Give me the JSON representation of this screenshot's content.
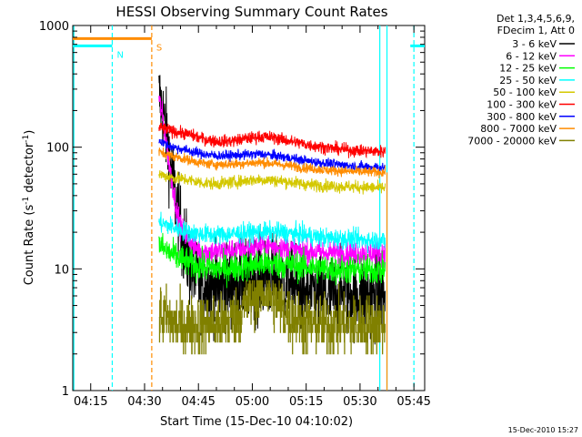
{
  "chart_data": {
    "type": "line",
    "title": "HESSI Observing Summary Count Rates",
    "xlabel": "Start Time (15-Dec-10 04:10:02)",
    "ylabel_main": "Count Rate (s",
    "ylabel_sup1": "-1",
    "ylabel_mid": " detector",
    "ylabel_sup2": "-1",
    "ylabel_end": ")",
    "y_scale": "log",
    "ylim": [
      1,
      1000
    ],
    "xlim_minutes": [
      0,
      98
    ],
    "x_ticks": [
      {
        "minutes": 5,
        "label": "04:15"
      },
      {
        "minutes": 20,
        "label": "04:30"
      },
      {
        "minutes": 35,
        "label": "04:45"
      },
      {
        "minutes": 50,
        "label": "05:00"
      },
      {
        "minutes": 65,
        "label": "05:15"
      },
      {
        "minutes": 80,
        "label": "05:30"
      },
      {
        "minutes": 95,
        "label": "05:45"
      }
    ],
    "y_ticks": [
      {
        "value": 1,
        "label": "1"
      },
      {
        "value": 10,
        "label": "10"
      },
      {
        "value": 100,
        "label": "100"
      },
      {
        "value": 1000,
        "label": "1000"
      }
    ],
    "legend_header": [
      "Det 1,3,4,5,6,9,",
      "FDecim 1, Att 0"
    ],
    "legend_placement": "right",
    "markers": [
      {
        "label": "N",
        "minutes": 11,
        "color": "#00ffff",
        "level": 680
      },
      {
        "label": "S",
        "minutes": 22,
        "color": "#ff8c00",
        "level": 780
      }
    ],
    "night_bars": [
      {
        "color": "#00ffff",
        "from": 0,
        "to": 11,
        "level": 680
      },
      {
        "color": "#00ffff",
        "from": 94,
        "to": 98,
        "level": 680
      },
      {
        "color": "#ff8c00",
        "from": 0,
        "to": 22,
        "level": 780
      }
    ],
    "vertical_lines": [
      {
        "minutes": 0.3,
        "color": "#00ffff",
        "style": "solid"
      },
      {
        "minutes": 11,
        "color": "#00ffff",
        "style": "dashed"
      },
      {
        "minutes": 22,
        "color": "#ff8c00",
        "style": "dashed"
      },
      {
        "minutes": 85.5,
        "color": "#00ffff",
        "style": "solid"
      },
      {
        "minutes": 87.5,
        "color": "#00ffff",
        "style": "solid"
      },
      {
        "minutes": 95,
        "color": "#00ffff",
        "style": "dashed"
      }
    ],
    "series": [
      {
        "name": "3 - 6 keV",
        "color": "#000000",
        "points": [
          [
            24,
            260
          ],
          [
            25,
            200
          ],
          [
            26,
            130
          ],
          [
            27,
            80
          ],
          [
            28,
            50
          ],
          [
            29,
            32
          ],
          [
            30,
            22
          ],
          [
            31,
            16
          ],
          [
            32,
            12
          ],
          [
            33,
            10
          ],
          [
            34,
            8.5
          ],
          [
            36,
            7.5
          ],
          [
            40,
            7
          ],
          [
            45,
            7.5
          ],
          [
            48,
            8
          ],
          [
            52,
            8.5
          ],
          [
            56,
            8.5
          ],
          [
            60,
            7.5
          ],
          [
            64,
            6.5
          ],
          [
            68,
            6.2
          ],
          [
            72,
            6
          ],
          [
            76,
            6.2
          ],
          [
            80,
            6
          ],
          [
            84,
            6
          ],
          [
            87,
            6
          ]
        ],
        "noise": 0.17
      },
      {
        "name": "6 - 12 keV",
        "color": "#ff00ff",
        "points": [
          [
            24,
            250
          ],
          [
            25,
            180
          ],
          [
            26,
            110
          ],
          [
            27,
            70
          ],
          [
            28,
            45
          ],
          [
            29,
            30
          ],
          [
            30,
            22
          ],
          [
            31,
            20
          ],
          [
            32,
            18
          ],
          [
            34,
            15
          ],
          [
            36,
            14
          ],
          [
            40,
            13.8
          ],
          [
            46,
            14.2
          ],
          [
            50,
            15
          ],
          [
            54,
            15.5
          ],
          [
            58,
            15
          ],
          [
            64,
            14
          ],
          [
            70,
            13.6
          ],
          [
            78,
            13.5
          ],
          [
            87,
            13.5
          ]
        ],
        "noise": 0.05
      },
      {
        "name": "12 - 25 keV",
        "color": "#00ff00",
        "points": [
          [
            24,
            16
          ],
          [
            26,
            14
          ],
          [
            28,
            13
          ],
          [
            30,
            12
          ],
          [
            33,
            11
          ],
          [
            36,
            10.5
          ],
          [
            40,
            10
          ],
          [
            46,
            10.3
          ],
          [
            52,
            11
          ],
          [
            58,
            11
          ],
          [
            64,
            10.5
          ],
          [
            70,
            10
          ],
          [
            78,
            9.8
          ],
          [
            87,
            9.8
          ]
        ],
        "noise": 0.06
      },
      {
        "name": "25 - 50 keV",
        "color": "#00ffff",
        "points": [
          [
            24,
            24
          ],
          [
            26,
            23
          ],
          [
            28,
            22
          ],
          [
            30,
            21
          ],
          [
            34,
            19.5
          ],
          [
            40,
            19
          ],
          [
            46,
            19.5
          ],
          [
            52,
            20
          ],
          [
            58,
            20
          ],
          [
            64,
            19
          ],
          [
            70,
            18
          ],
          [
            78,
            17.5
          ],
          [
            87,
            17
          ]
        ],
        "noise": 0.04
      },
      {
        "name": "50 - 100 keV",
        "color": "#d4c800",
        "points": [
          [
            24,
            60
          ],
          [
            26,
            58
          ],
          [
            28,
            56
          ],
          [
            32,
            54
          ],
          [
            36,
            51
          ],
          [
            40,
            50
          ],
          [
            46,
            52
          ],
          [
            50,
            54
          ],
          [
            54,
            54
          ],
          [
            60,
            52
          ],
          [
            66,
            49
          ],
          [
            72,
            48
          ],
          [
            80,
            47
          ],
          [
            87,
            46
          ]
        ],
        "noise": 0.025
      },
      {
        "name": "100 - 300 keV",
        "color": "#ff0000",
        "points": [
          [
            24,
            145
          ],
          [
            26,
            140
          ],
          [
            28,
            135
          ],
          [
            32,
            128
          ],
          [
            36,
            118
          ],
          [
            40,
            112
          ],
          [
            44,
            112
          ],
          [
            48,
            117
          ],
          [
            52,
            122
          ],
          [
            56,
            120
          ],
          [
            60,
            113
          ],
          [
            66,
            104
          ],
          [
            72,
            98
          ],
          [
            78,
            94
          ],
          [
            87,
            92
          ]
        ],
        "noise": 0.025
      },
      {
        "name": "300 - 800 keV",
        "color": "#0000ff",
        "points": [
          [
            24,
            115
          ],
          [
            26,
            105
          ],
          [
            28,
            100
          ],
          [
            32,
            94
          ],
          [
            36,
            88
          ],
          [
            40,
            85
          ],
          [
            46,
            86
          ],
          [
            52,
            88
          ],
          [
            58,
            84
          ],
          [
            64,
            78
          ],
          [
            70,
            74
          ],
          [
            78,
            70
          ],
          [
            87,
            68
          ]
        ],
        "noise": 0.02
      },
      {
        "name": "800 - 7000 keV",
        "color": "#ff8c00",
        "points": [
          [
            24,
            92
          ],
          [
            26,
            88
          ],
          [
            28,
            84
          ],
          [
            32,
            79
          ],
          [
            36,
            74
          ],
          [
            40,
            72
          ],
          [
            46,
            73
          ],
          [
            52,
            75
          ],
          [
            58,
            72
          ],
          [
            64,
            68
          ],
          [
            70,
            65
          ],
          [
            78,
            63
          ],
          [
            87,
            62
          ]
        ],
        "noise": 0.02
      },
      {
        "name": "7000 - 20000 keV",
        "color": "#808000",
        "points": [
          [
            24,
            4.2
          ],
          [
            26,
            4
          ],
          [
            28,
            3.5
          ],
          [
            30,
            3.4
          ],
          [
            34,
            3.5
          ],
          [
            38,
            3.5
          ],
          [
            42,
            3.6
          ],
          [
            46,
            4.2
          ],
          [
            48,
            5
          ],
          [
            50,
            6
          ],
          [
            52,
            6.5
          ],
          [
            54,
            6.2
          ],
          [
            56,
            5.6
          ],
          [
            58,
            4.8
          ],
          [
            60,
            4.2
          ],
          [
            64,
            3.6
          ],
          [
            70,
            3.5
          ],
          [
            78,
            3.5
          ],
          [
            87,
            3.5
          ]
        ],
        "noise": 0.12,
        "steps": true
      }
    ],
    "end_drop": {
      "minutes": 87.5,
      "color": "#ff8c00",
      "from": 62,
      "to": 1
    }
  },
  "timestamp": "15-Dec-2010 15:27"
}
